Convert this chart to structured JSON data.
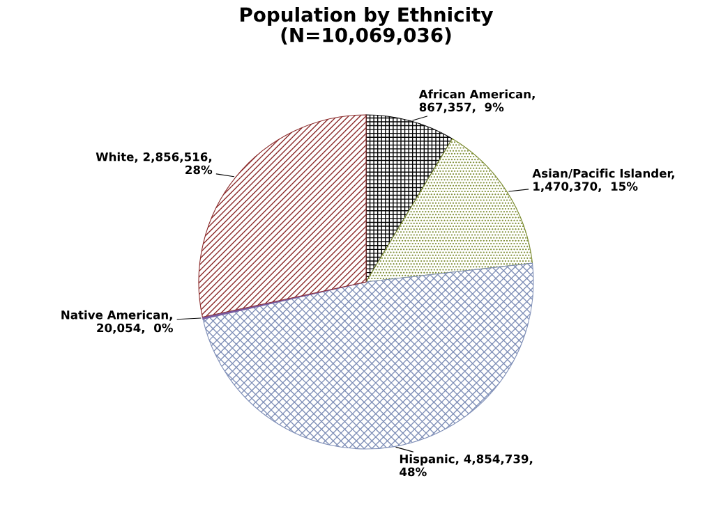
{
  "chart_data": {
    "type": "pie",
    "title": "Population by Ethnicity\n(N=10,069,036)",
    "categories": [
      "African American",
      "Asian/Pacific Islander",
      "Hispanic",
      "Native American",
      "White"
    ],
    "values": [
      867357,
      1470370,
      4854739,
      20054,
      2856516
    ],
    "colors": [
      "#000000",
      "#7a8a2e",
      "#8090b8",
      "#7a5aa0",
      "#8b2a2a"
    ],
    "value_labels": [
      ",\n867,357,  9%",
      ",\n1,470,370,  15%",
      ", 4,854,739,\n48%",
      ",\n20,054,  0%",
      ", 2,856,516,\n28%"
    ]
  }
}
